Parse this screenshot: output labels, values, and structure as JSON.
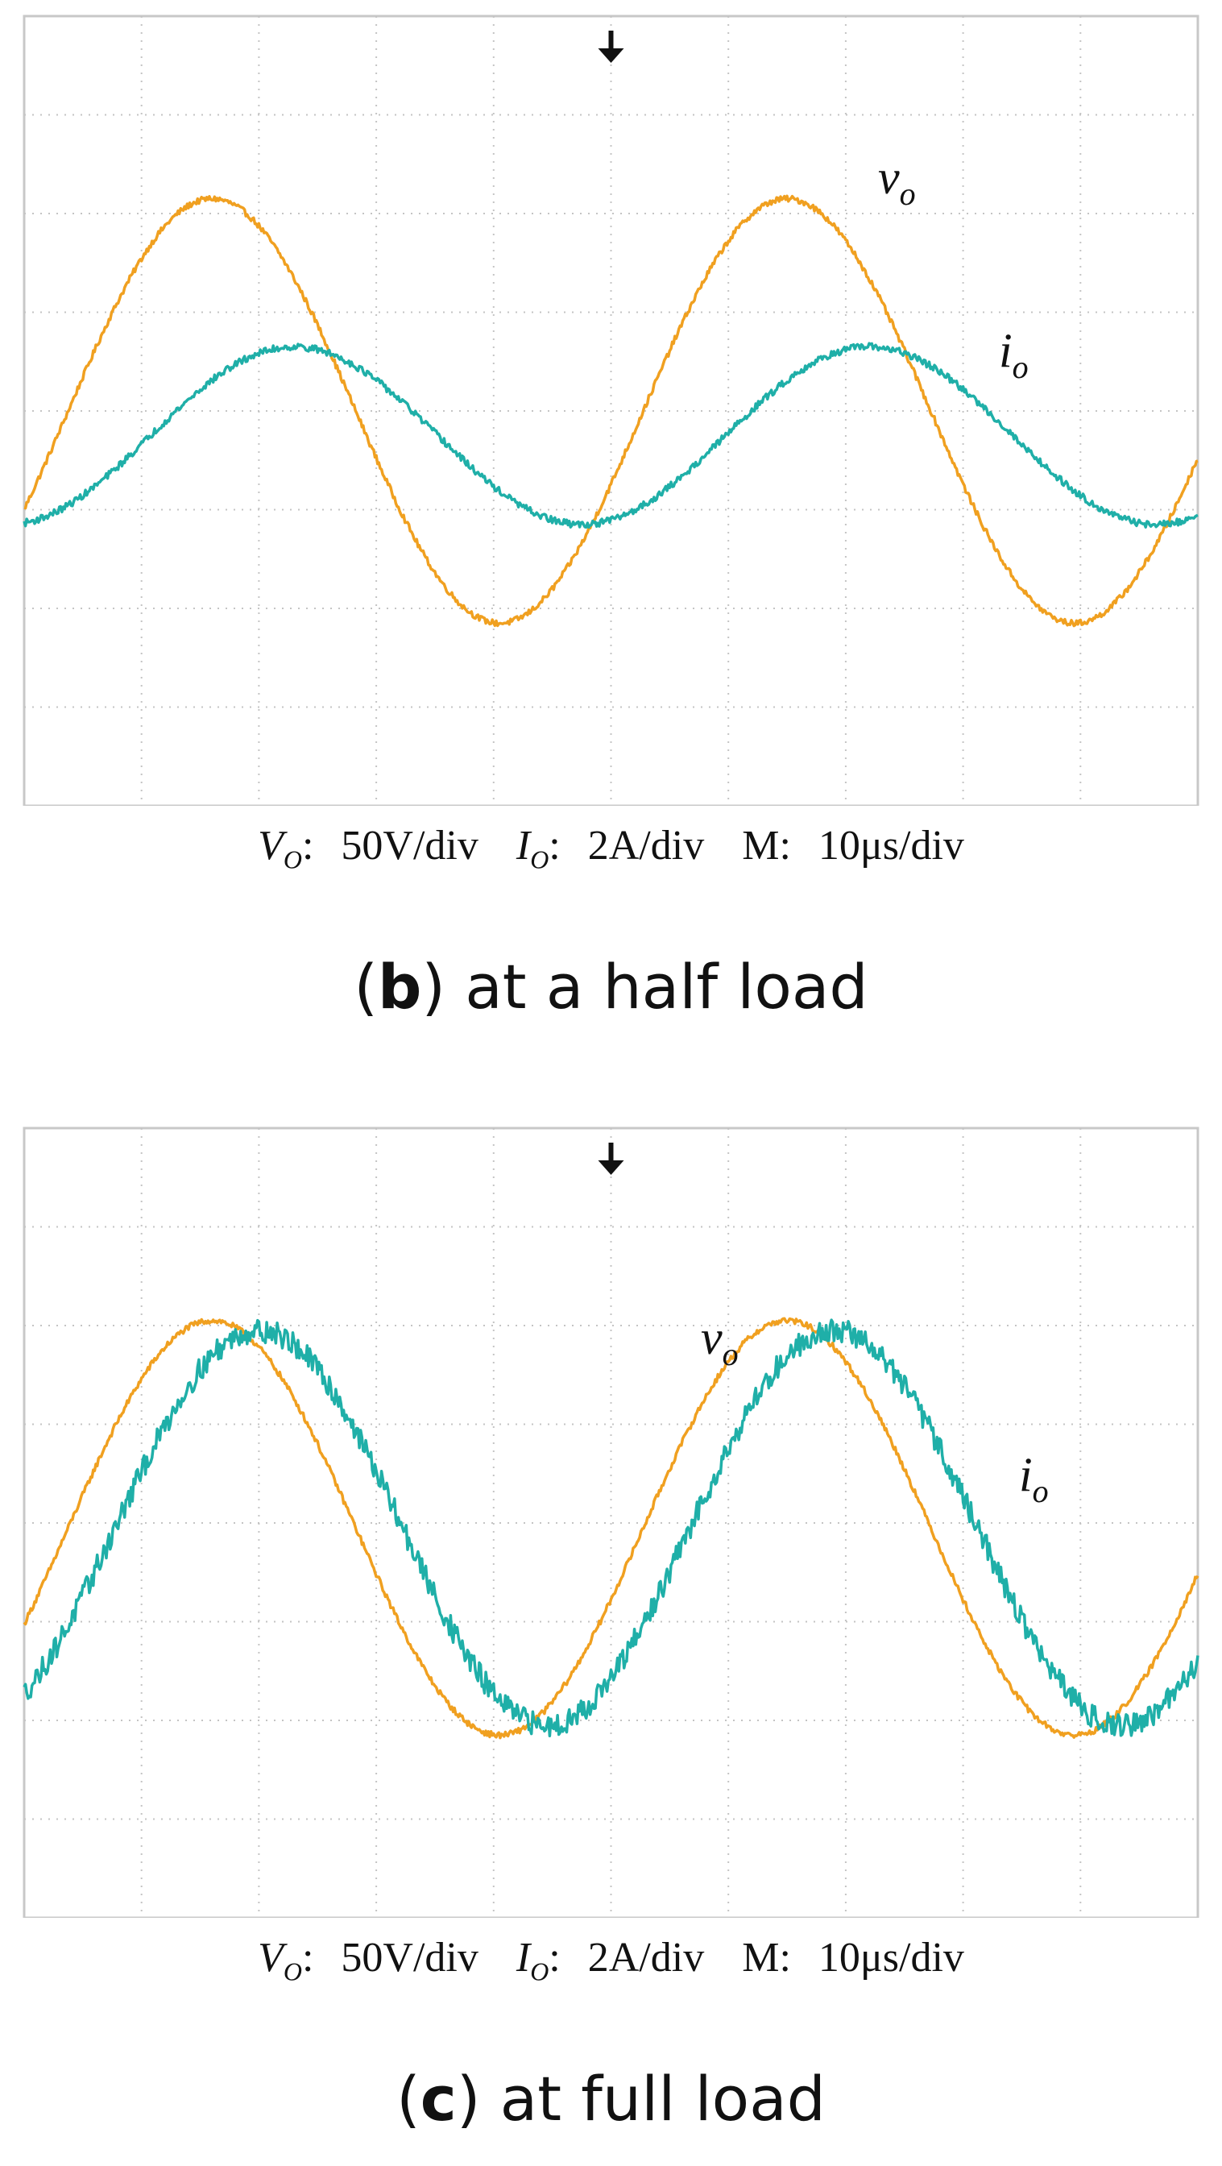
{
  "chart_data": [
    {
      "type": "line",
      "panel_letter": "b",
      "caption": "at a half load",
      "xlim": [
        0,
        100
      ],
      "ylim": [
        -4,
        4
      ],
      "grid": true,
      "trigger_marker": true,
      "scale_text": [
        {
          "sym": "V",
          "sub": "O",
          "sep": ":",
          "value": "50V/div"
        },
        {
          "sym": "I",
          "sub": "O",
          "sep": ":",
          "value": "2A/div"
        },
        {
          "sym": "M",
          "sub": "",
          "sep": ":",
          "value": "10μs/div"
        }
      ],
      "series": [
        {
          "name": "vo",
          "base": "v",
          "sub": "o",
          "color": "#F0A020",
          "amplitude_div": 2.15,
          "period_div": 4.9,
          "peak_at_div": 1.6,
          "offset_div": 0,
          "noise_div": 0.03
        },
        {
          "name": "io",
          "base": "i",
          "sub": "o",
          "color": "#1FAFA8",
          "amplitude_div": 0.9,
          "period_div": 4.9,
          "peak_at_div": 2.3,
          "offset_div": -0.25,
          "noise_div": 0.035
        }
      ]
    },
    {
      "type": "line",
      "panel_letter": "c",
      "caption": "at full load",
      "xlim": [
        0,
        100
      ],
      "ylim": [
        -4,
        4
      ],
      "grid": true,
      "trigger_marker": true,
      "scale_text": [
        {
          "sym": "V",
          "sub": "O",
          "sep": ":",
          "value": "50V/div"
        },
        {
          "sym": "I",
          "sub": "O",
          "sep": ":",
          "value": "2A/div"
        },
        {
          "sym": "M",
          "sub": "",
          "sep": ":",
          "value": "10μs/div"
        }
      ],
      "series": [
        {
          "name": "vo",
          "base": "v",
          "sub": "o",
          "color": "#F0A020",
          "amplitude_div": 2.1,
          "period_div": 4.9,
          "peak_at_div": 1.6,
          "offset_div": -0.05,
          "noise_div": 0.03
        },
        {
          "name": "io",
          "base": "i",
          "sub": "o",
          "color": "#1FAFA8",
          "amplitude_div": 2.0,
          "period_div": 4.9,
          "peak_at_div": 2.0,
          "offset_div": -0.05,
          "noise_div": 0.12
        }
      ]
    }
  ]
}
